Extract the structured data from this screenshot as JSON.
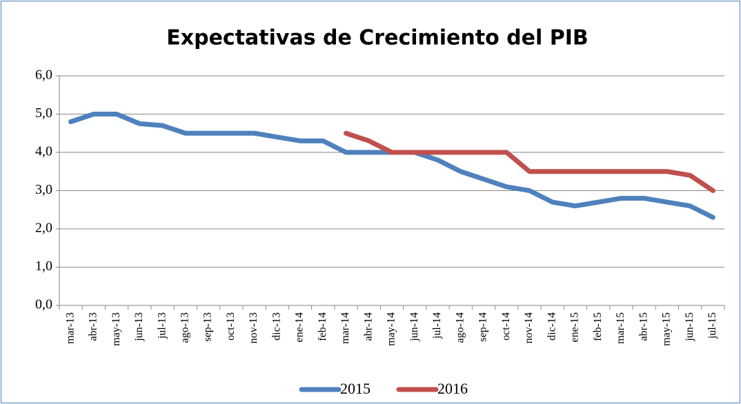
{
  "chart_data": {
    "type": "line",
    "title": "Expectativas de Crecimiento del PIB",
    "categories": [
      "mar-13",
      "abr-13",
      "may-13",
      "jun-13",
      "jul-13",
      "ago-13",
      "sep-13",
      "oct-13",
      "nov-13",
      "dic-13",
      "ene-14",
      "feb-14",
      "mar-14",
      "abr-14",
      "may-14",
      "jun-14",
      "jul-14",
      "ago-14",
      "sep-14",
      "oct-14",
      "nov-14",
      "dic-14",
      "ene-15",
      "feb-15",
      "mar-15",
      "abr-15",
      "may-15",
      "jun-15",
      "jul-15"
    ],
    "series": [
      {
        "name": "2015",
        "color": "#4f81bd",
        "values": [
          4.8,
          5.0,
          5.0,
          4.75,
          4.7,
          4.5,
          4.5,
          4.5,
          4.5,
          4.4,
          4.3,
          4.3,
          4.0,
          4.0,
          4.0,
          4.0,
          3.8,
          3.5,
          3.3,
          3.1,
          3.0,
          2.7,
          2.6,
          2.7,
          2.8,
          2.8,
          2.7,
          2.6,
          2.3
        ]
      },
      {
        "name": "2016",
        "color": "#c0504d",
        "values": [
          null,
          null,
          null,
          null,
          null,
          null,
          null,
          null,
          null,
          null,
          null,
          null,
          4.5,
          4.3,
          4.0,
          4.0,
          4.0,
          4.0,
          4.0,
          4.0,
          3.5,
          3.5,
          3.5,
          3.5,
          3.5,
          3.5,
          3.5,
          3.4,
          3.0
        ]
      }
    ],
    "ylim": [
      0,
      6
    ],
    "yticks": [
      {
        "value": 0,
        "label": "0,0"
      },
      {
        "value": 1,
        "label": "1,0"
      },
      {
        "value": 2,
        "label": "2,0"
      },
      {
        "value": 3,
        "label": "3,0"
      },
      {
        "value": 4,
        "label": "4,0"
      },
      {
        "value": 5,
        "label": "5,0"
      },
      {
        "value": 6,
        "label": "6,0"
      }
    ],
    "grid": true,
    "legend": "bottom"
  }
}
